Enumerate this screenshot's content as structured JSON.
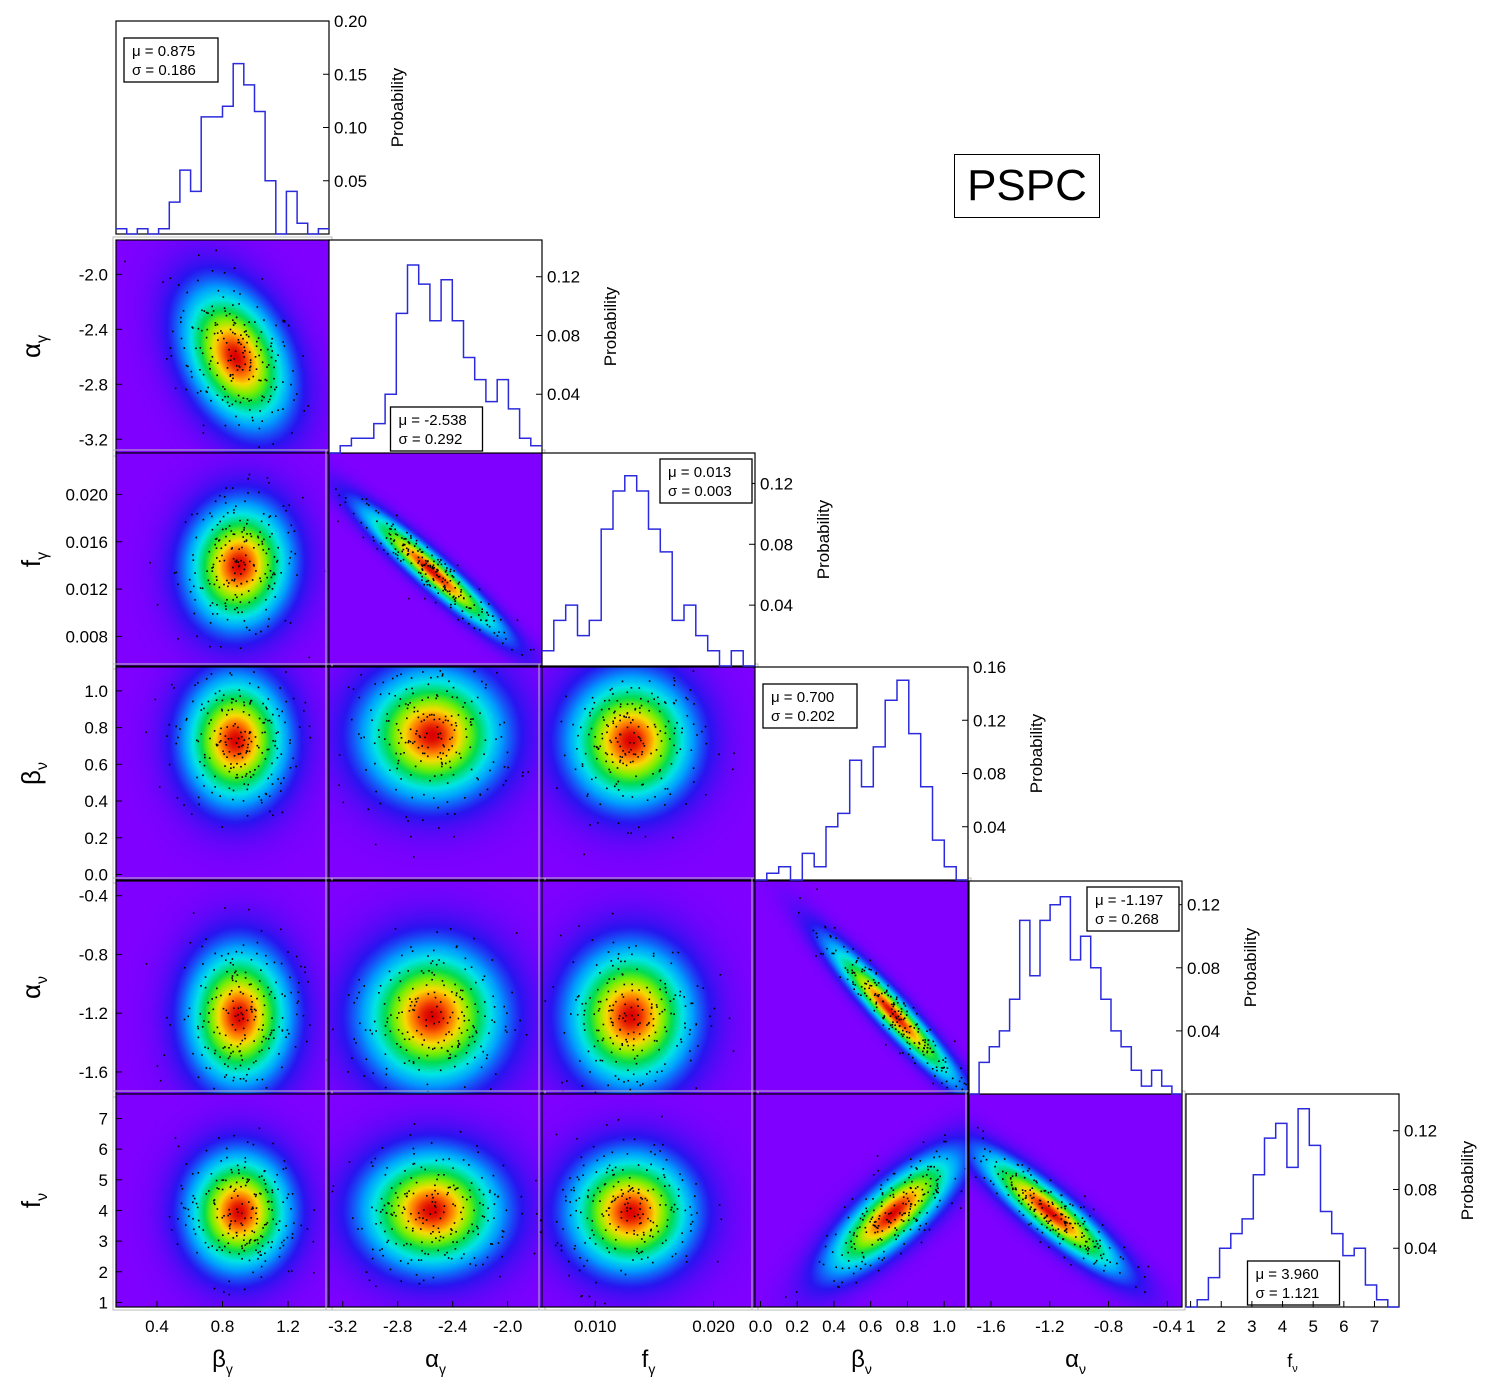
{
  "title": "PSPC",
  "colors": {
    "histogram_line": "#2b2bdd",
    "cmap_low": "#8000ff",
    "cmap_high": "#e00000",
    "sample_points": "#000000"
  },
  "chart_data": {
    "type": "corner",
    "parameters": [
      {
        "symbol": "β",
        "subscript": "γ",
        "range": [
          0.15,
          1.45
        ],
        "ticks": [
          0.4,
          0.8,
          1.2
        ],
        "tick_labels": [
          "0.4",
          "0.8",
          "1.2"
        ]
      },
      {
        "symbol": "α",
        "subscript": "γ",
        "range": [
          -3.3,
          -1.75
        ],
        "ticks": [
          -3.2,
          -2.8,
          -2.4,
          -2.0
        ],
        "tick_labels": [
          "-3.2",
          "-2.8",
          "-2.4",
          "-2.0"
        ]
      },
      {
        "symbol": "f",
        "subscript": "γ",
        "range": [
          0.0055,
          0.0235
        ],
        "ticks": [
          0.008,
          0.012,
          0.016,
          0.02
        ],
        "tick_labels": [
          "0.008",
          "0.012",
          "0.016",
          "0.020"
        ],
        "x_ticks": [
          0.01,
          0.02
        ],
        "x_tick_labels": [
          "0.010",
          "0.020"
        ]
      },
      {
        "symbol": "β",
        "subscript": "ν",
        "range": [
          -0.03,
          1.13
        ],
        "ticks": [
          0.0,
          0.2,
          0.4,
          0.6,
          0.8,
          1.0
        ],
        "tick_labels": [
          "0.0",
          "0.2",
          "0.4",
          "0.6",
          "0.8",
          "1.0"
        ]
      },
      {
        "symbol": "α",
        "subscript": "ν",
        "range": [
          -1.75,
          -0.3
        ],
        "ticks": [
          -1.6,
          -1.2,
          -0.8,
          -0.4
        ],
        "tick_labels": [
          "-1.6",
          "-1.2",
          "-0.8",
          "-0.4"
        ]
      },
      {
        "symbol": "f",
        "subscript": "ν",
        "range": [
          0.85,
          7.8
        ],
        "ticks": [
          1,
          2,
          3,
          4,
          5,
          6,
          7
        ],
        "tick_labels": [
          "1",
          "2",
          "3",
          "4",
          "5",
          "6",
          "7"
        ]
      }
    ],
    "histograms": [
      {
        "param": 0,
        "ylabel": "Probability",
        "ylim": [
          0,
          0.2
        ],
        "yticks": [
          0.05,
          0.1,
          0.15,
          0.2
        ],
        "ytick_labels": [
          "0.05",
          "0.10",
          "0.15",
          "0.20"
        ],
        "stats": {
          "mu": "μ = 0.875",
          "sigma": "σ = 0.186"
        },
        "stats_pos": "top-left",
        "values": [
          0.005,
          0.0,
          0.005,
          0.0,
          0.005,
          0.03,
          0.06,
          0.04,
          0.11,
          0.11,
          0.12,
          0.16,
          0.14,
          0.115,
          0.05,
          0.0,
          0.04,
          0.01,
          0.0,
          0.005
        ]
      },
      {
        "param": 1,
        "ylabel": "Probability",
        "ylim": [
          0,
          0.145
        ],
        "yticks": [
          0.04,
          0.08,
          0.12
        ],
        "ytick_labels": [
          "0.04",
          "0.08",
          "0.12"
        ],
        "stats": {
          "mu": "μ = -2.538",
          "sigma": "σ = 0.292"
        },
        "stats_pos": "bottom-center",
        "values": [
          0.0,
          0.005,
          0.01,
          0.01,
          0.02,
          0.04,
          0.095,
          0.128,
          0.115,
          0.09,
          0.118,
          0.09,
          0.065,
          0.05,
          0.035,
          0.05,
          0.03,
          0.01,
          0.005
        ]
      },
      {
        "param": 2,
        "ylabel": "Probability",
        "ylim": [
          0,
          0.14
        ],
        "yticks": [
          0.04,
          0.08,
          0.12
        ],
        "ytick_labels": [
          "0.04",
          "0.08",
          "0.12"
        ],
        "stats": {
          "mu": "μ = 0.013",
          "sigma": "σ = 0.003"
        },
        "stats_pos": "top-right",
        "values": [
          0.01,
          0.03,
          0.04,
          0.02,
          0.03,
          0.09,
          0.115,
          0.125,
          0.115,
          0.09,
          0.075,
          0.03,
          0.04,
          0.02,
          0.01,
          0.0,
          0.01,
          0.0
        ]
      },
      {
        "param": 3,
        "ylabel": "Probability",
        "ylim": [
          0,
          0.16
        ],
        "yticks": [
          0.04,
          0.08,
          0.12,
          0.16
        ],
        "ytick_labels": [
          "0.04",
          "0.08",
          "0.12",
          "0.16"
        ],
        "stats": {
          "mu": "μ = 0.700",
          "sigma": "σ = 0.202"
        },
        "stats_pos": "top-left",
        "values": [
          0.0,
          0.005,
          0.01,
          0.0,
          0.02,
          0.01,
          0.04,
          0.05,
          0.09,
          0.07,
          0.1,
          0.135,
          0.15,
          0.11,
          0.07,
          0.03,
          0.01,
          0.0
        ]
      },
      {
        "param": 4,
        "ylabel": "Probability",
        "ylim": [
          0,
          0.135
        ],
        "yticks": [
          0.04,
          0.08,
          0.12
        ],
        "ytick_labels": [
          "0.04",
          "0.08",
          "0.12"
        ],
        "stats": {
          "mu": "μ = -1.197",
          "sigma": "σ = 0.268"
        },
        "stats_pos": "top-right",
        "values": [
          0.0,
          0.02,
          0.03,
          0.04,
          0.06,
          0.11,
          0.075,
          0.11,
          0.12,
          0.125,
          0.085,
          0.1,
          0.08,
          0.06,
          0.04,
          0.03,
          0.015,
          0.005,
          0.015,
          0.005,
          0.0
        ]
      },
      {
        "param": 5,
        "ylabel": "Probability",
        "ylim": [
          0,
          0.145
        ],
        "yticks": [
          0.04,
          0.08,
          0.12
        ],
        "ytick_labels": [
          "0.04",
          "0.08",
          "0.12"
        ],
        "stats": {
          "mu": "μ = 3.960",
          "sigma": "σ = 1.121"
        },
        "stats_pos": "bottom-center",
        "values": [
          0.0,
          0.005,
          0.02,
          0.04,
          0.05,
          0.06,
          0.09,
          0.115,
          0.125,
          0.095,
          0.135,
          0.11,
          0.065,
          0.05,
          0.035,
          0.04,
          0.015,
          0.005,
          0.0
        ]
      }
    ],
    "joint_distributions": [
      {
        "x": 0,
        "y": 1,
        "center": [
          0.88,
          -2.6
        ],
        "sigma": [
          0.186,
          0.29
        ],
        "corr": -0.35
      },
      {
        "x": 0,
        "y": 2,
        "center": [
          0.9,
          0.014
        ],
        "sigma": [
          0.18,
          0.003
        ],
        "corr": 0.05
      },
      {
        "x": 1,
        "y": 2,
        "center": [
          -2.55,
          0.0135
        ],
        "sigma": [
          0.29,
          0.003
        ],
        "corr": -0.95
      },
      {
        "x": 0,
        "y": 3,
        "center": [
          0.88,
          0.73
        ],
        "sigma": [
          0.18,
          0.2
        ],
        "corr": 0.0
      },
      {
        "x": 1,
        "y": 3,
        "center": [
          -2.55,
          0.76
        ],
        "sigma": [
          0.29,
          0.2
        ],
        "corr": 0.0
      },
      {
        "x": 2,
        "y": 3,
        "center": [
          0.013,
          0.73
        ],
        "sigma": [
          0.003,
          0.2
        ],
        "corr": 0.0
      },
      {
        "x": 0,
        "y": 4,
        "center": [
          0.9,
          -1.22
        ],
        "sigma": [
          0.18,
          0.27
        ],
        "corr": 0.0
      },
      {
        "x": 1,
        "y": 4,
        "center": [
          -2.55,
          -1.22
        ],
        "sigma": [
          0.29,
          0.27
        ],
        "corr": 0.0
      },
      {
        "x": 2,
        "y": 4,
        "center": [
          0.013,
          -1.22
        ],
        "sigma": [
          0.003,
          0.27
        ],
        "corr": 0.0
      },
      {
        "x": 3,
        "y": 4,
        "center": [
          0.72,
          -1.2
        ],
        "sigma": [
          0.2,
          0.27
        ],
        "corr": -0.95
      },
      {
        "x": 0,
        "y": 5,
        "center": [
          0.9,
          3.95
        ],
        "sigma": [
          0.18,
          1.1
        ],
        "corr": 0.0
      },
      {
        "x": 1,
        "y": 5,
        "center": [
          -2.55,
          4.0
        ],
        "sigma": [
          0.29,
          1.1
        ],
        "corr": 0.0
      },
      {
        "x": 2,
        "y": 5,
        "center": [
          0.013,
          3.95
        ],
        "sigma": [
          0.003,
          1.1
        ],
        "corr": 0.0
      },
      {
        "x": 3,
        "y": 5,
        "center": [
          0.72,
          3.9
        ],
        "sigma": [
          0.2,
          1.1
        ],
        "corr": 0.8
      },
      {
        "x": 4,
        "y": 5,
        "center": [
          -1.2,
          3.95
        ],
        "sigma": [
          0.27,
          1.1
        ],
        "corr": -0.9
      }
    ]
  }
}
